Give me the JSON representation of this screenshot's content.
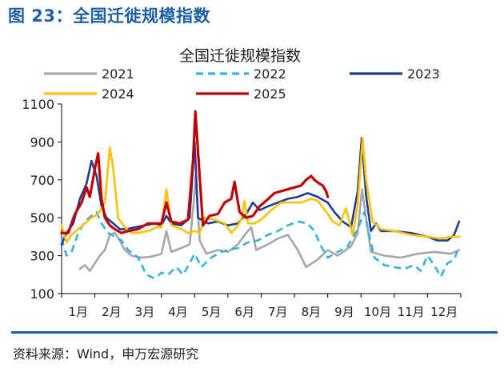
{
  "figure_title": "图 23：全国迁徙规模指数",
  "source": "资料来源：Wind，申万宏源研究",
  "chart_data": {
    "type": "line",
    "title": "全国迁徙规模指数",
    "xlabel": "",
    "ylabel": "",
    "ylim": [
      100,
      1100
    ],
    "yticks": [
      100,
      300,
      500,
      700,
      900,
      1100
    ],
    "x_unit": "month",
    "xlim": [
      1,
      13
    ],
    "month_labels": [
      "1月",
      "2月",
      "3月",
      "4月",
      "5月",
      "6月",
      "7月",
      "8月",
      "9月",
      "10月",
      "11月",
      "12月"
    ],
    "grid": false,
    "legend_position": "top",
    "series": [
      {
        "name": "2021",
        "color": "#a6a6a6",
        "dash": "solid",
        "points": [
          [
            1.55,
            230
          ],
          [
            1.7,
            250
          ],
          [
            1.85,
            220
          ],
          [
            2.0,
            260
          ],
          [
            2.15,
            300
          ],
          [
            2.3,
            330
          ],
          [
            2.45,
            410
          ],
          [
            2.6,
            420
          ],
          [
            2.75,
            380
          ],
          [
            2.9,
            330
          ],
          [
            3.1,
            300
          ],
          [
            3.4,
            290
          ],
          [
            3.7,
            295
          ],
          [
            4.0,
            310
          ],
          [
            4.15,
            430
          ],
          [
            4.3,
            320
          ],
          [
            4.6,
            340
          ],
          [
            4.85,
            360
          ],
          [
            4.97,
            580
          ],
          [
            5.03,
            720
          ],
          [
            5.15,
            380
          ],
          [
            5.35,
            310
          ],
          [
            5.7,
            330
          ],
          [
            6.0,
            320
          ],
          [
            6.3,
            360
          ],
          [
            6.55,
            420
          ],
          [
            6.7,
            450
          ],
          [
            6.85,
            330
          ],
          [
            7.2,
            360
          ],
          [
            7.5,
            390
          ],
          [
            7.8,
            410
          ],
          [
            8.1,
            330
          ],
          [
            8.35,
            240
          ],
          [
            8.7,
            280
          ],
          [
            9.0,
            330
          ],
          [
            9.3,
            300
          ],
          [
            9.7,
            350
          ],
          [
            9.9,
            420
          ],
          [
            10.03,
            650
          ],
          [
            10.12,
            540
          ],
          [
            10.3,
            320
          ],
          [
            10.7,
            300
          ],
          [
            11.2,
            290
          ],
          [
            11.7,
            310
          ],
          [
            12.2,
            320
          ],
          [
            12.7,
            310
          ],
          [
            12.95,
            330
          ]
        ]
      },
      {
        "name": "2022",
        "color": "#33b0e6",
        "dash": "dash",
        "points": [
          [
            1.0,
            390
          ],
          [
            1.15,
            300
          ],
          [
            1.3,
            320
          ],
          [
            1.5,
            420
          ],
          [
            1.7,
            480
          ],
          [
            1.9,
            510
          ],
          [
            2.05,
            530
          ],
          [
            2.2,
            470
          ],
          [
            2.4,
            420
          ],
          [
            2.6,
            400
          ],
          [
            2.8,
            380
          ],
          [
            3.0,
            330
          ],
          [
            3.3,
            290
          ],
          [
            3.55,
            200
          ],
          [
            3.8,
            180
          ],
          [
            4.0,
            210
          ],
          [
            4.2,
            200
          ],
          [
            4.45,
            240
          ],
          [
            4.65,
            200
          ],
          [
            4.85,
            260
          ],
          [
            5.0,
            310
          ],
          [
            5.2,
            240
          ],
          [
            5.5,
            290
          ],
          [
            5.8,
            320
          ],
          [
            6.0,
            330
          ],
          [
            6.3,
            340
          ],
          [
            6.6,
            370
          ],
          [
            6.9,
            380
          ],
          [
            7.2,
            410
          ],
          [
            7.5,
            430
          ],
          [
            7.8,
            460
          ],
          [
            8.1,
            480
          ],
          [
            8.4,
            470
          ],
          [
            8.6,
            430
          ],
          [
            8.8,
            350
          ],
          [
            9.0,
            290
          ],
          [
            9.3,
            320
          ],
          [
            9.6,
            350
          ],
          [
            9.9,
            440
          ],
          [
            10.1,
            530
          ],
          [
            10.25,
            410
          ],
          [
            10.4,
            290
          ],
          [
            10.7,
            250
          ],
          [
            11.0,
            240
          ],
          [
            11.3,
            230
          ],
          [
            11.6,
            250
          ],
          [
            11.8,
            220
          ],
          [
            12.0,
            300
          ],
          [
            12.2,
            250
          ],
          [
            12.4,
            190
          ],
          [
            12.6,
            260
          ],
          [
            12.8,
            280
          ],
          [
            12.95,
            350
          ]
        ]
      },
      {
        "name": "2023",
        "color": "#1a3f95",
        "dash": "solid",
        "points": [
          [
            1.0,
            360
          ],
          [
            1.15,
            420
          ],
          [
            1.35,
            470
          ],
          [
            1.55,
            600
          ],
          [
            1.75,
            680
          ],
          [
            1.9,
            800
          ],
          [
            2.05,
            720
          ],
          [
            2.2,
            560
          ],
          [
            2.35,
            500
          ],
          [
            2.55,
            470
          ],
          [
            2.75,
            440
          ],
          [
            2.95,
            440
          ],
          [
            3.2,
            450
          ],
          [
            3.5,
            460
          ],
          [
            3.8,
            470
          ],
          [
            4.0,
            460
          ],
          [
            4.15,
            510
          ],
          [
            4.3,
            470
          ],
          [
            4.6,
            460
          ],
          [
            4.85,
            500
          ],
          [
            5.0,
            900
          ],
          [
            5.1,
            500
          ],
          [
            5.4,
            470
          ],
          [
            5.7,
            480
          ],
          [
            6.0,
            460
          ],
          [
            6.3,
            470
          ],
          [
            6.55,
            520
          ],
          [
            6.75,
            580
          ],
          [
            6.95,
            540
          ],
          [
            7.2,
            560
          ],
          [
            7.5,
            580
          ],
          [
            7.8,
            600
          ],
          [
            8.1,
            610
          ],
          [
            8.4,
            630
          ],
          [
            8.7,
            610
          ],
          [
            9.0,
            580
          ],
          [
            9.2,
            530
          ],
          [
            9.45,
            480
          ],
          [
            9.7,
            450
          ],
          [
            9.9,
            640
          ],
          [
            10.02,
            920
          ],
          [
            10.15,
            620
          ],
          [
            10.3,
            430
          ],
          [
            10.45,
            470
          ],
          [
            10.6,
            430
          ],
          [
            11.0,
            430
          ],
          [
            11.5,
            420
          ],
          [
            12.0,
            400
          ],
          [
            12.3,
            380
          ],
          [
            12.6,
            380
          ],
          [
            12.8,
            410
          ],
          [
            12.95,
            480
          ]
        ]
      },
      {
        "name": "2024",
        "color": "#ffc000",
        "dash": "solid",
        "points": [
          [
            1.0,
            460
          ],
          [
            1.15,
            370
          ],
          [
            1.3,
            410
          ],
          [
            1.5,
            440
          ],
          [
            1.7,
            470
          ],
          [
            1.9,
            500
          ],
          [
            2.1,
            520
          ],
          [
            2.3,
            580
          ],
          [
            2.45,
            870
          ],
          [
            2.55,
            760
          ],
          [
            2.7,
            500
          ],
          [
            2.9,
            450
          ],
          [
            3.1,
            420
          ],
          [
            3.3,
            420
          ],
          [
            3.6,
            430
          ],
          [
            3.85,
            450
          ],
          [
            4.0,
            450
          ],
          [
            4.15,
            650
          ],
          [
            4.3,
            460
          ],
          [
            4.6,
            440
          ],
          [
            4.8,
            420
          ],
          [
            5.0,
            430
          ],
          [
            5.15,
            420
          ],
          [
            5.3,
            500
          ],
          [
            5.6,
            490
          ],
          [
            5.9,
            470
          ],
          [
            6.1,
            420
          ],
          [
            6.3,
            460
          ],
          [
            6.4,
            490
          ],
          [
            6.5,
            590
          ],
          [
            6.6,
            470
          ],
          [
            6.8,
            470
          ],
          [
            7.0,
            490
          ],
          [
            7.3,
            540
          ],
          [
            7.6,
            580
          ],
          [
            7.9,
            580
          ],
          [
            8.2,
            580
          ],
          [
            8.5,
            600
          ],
          [
            8.7,
            590
          ],
          [
            9.0,
            520
          ],
          [
            9.15,
            480
          ],
          [
            9.35,
            460
          ],
          [
            9.55,
            550
          ],
          [
            9.75,
            410
          ],
          [
            9.9,
            570
          ],
          [
            10.05,
            920
          ],
          [
            10.15,
            700
          ],
          [
            10.35,
            480
          ],
          [
            10.6,
            440
          ],
          [
            11.0,
            430
          ],
          [
            11.5,
            410
          ],
          [
            12.0,
            400
          ],
          [
            12.4,
            390
          ],
          [
            12.7,
            400
          ],
          [
            12.95,
            400
          ]
        ]
      },
      {
        "name": "2025",
        "color": "#c00000",
        "dash": "solid",
        "points": [
          [
            1.0,
            420
          ],
          [
            1.2,
            420
          ],
          [
            1.4,
            520
          ],
          [
            1.6,
            580
          ],
          [
            1.75,
            660
          ],
          [
            1.85,
            610
          ],
          [
            2.0,
            760
          ],
          [
            2.1,
            840
          ],
          [
            2.2,
            600
          ],
          [
            2.3,
            500
          ],
          [
            2.45,
            460
          ],
          [
            2.6,
            440
          ],
          [
            2.8,
            420
          ],
          [
            3.0,
            430
          ],
          [
            3.3,
            440
          ],
          [
            3.6,
            470
          ],
          [
            3.85,
            470
          ],
          [
            4.0,
            470
          ],
          [
            4.15,
            580
          ],
          [
            4.3,
            480
          ],
          [
            4.55,
            470
          ],
          [
            4.8,
            490
          ],
          [
            4.95,
            800
          ],
          [
            5.02,
            1060
          ],
          [
            5.12,
            800
          ],
          [
            5.25,
            460
          ],
          [
            5.45,
            510
          ],
          [
            5.7,
            520
          ],
          [
            5.9,
            580
          ],
          [
            6.1,
            600
          ],
          [
            6.2,
            690
          ],
          [
            6.35,
            530
          ],
          [
            6.55,
            500
          ],
          [
            6.75,
            510
          ],
          [
            6.95,
            560
          ],
          [
            7.15,
            590
          ],
          [
            7.4,
            630
          ],
          [
            7.6,
            640
          ],
          [
            7.8,
            650
          ],
          [
            8.0,
            660
          ],
          [
            8.2,
            670
          ],
          [
            8.35,
            700
          ],
          [
            8.5,
            720
          ],
          [
            8.6,
            700
          ],
          [
            8.75,
            680
          ],
          [
            8.85,
            670
          ],
          [
            8.95,
            640
          ],
          [
            9.0,
            610
          ]
        ]
      }
    ]
  }
}
